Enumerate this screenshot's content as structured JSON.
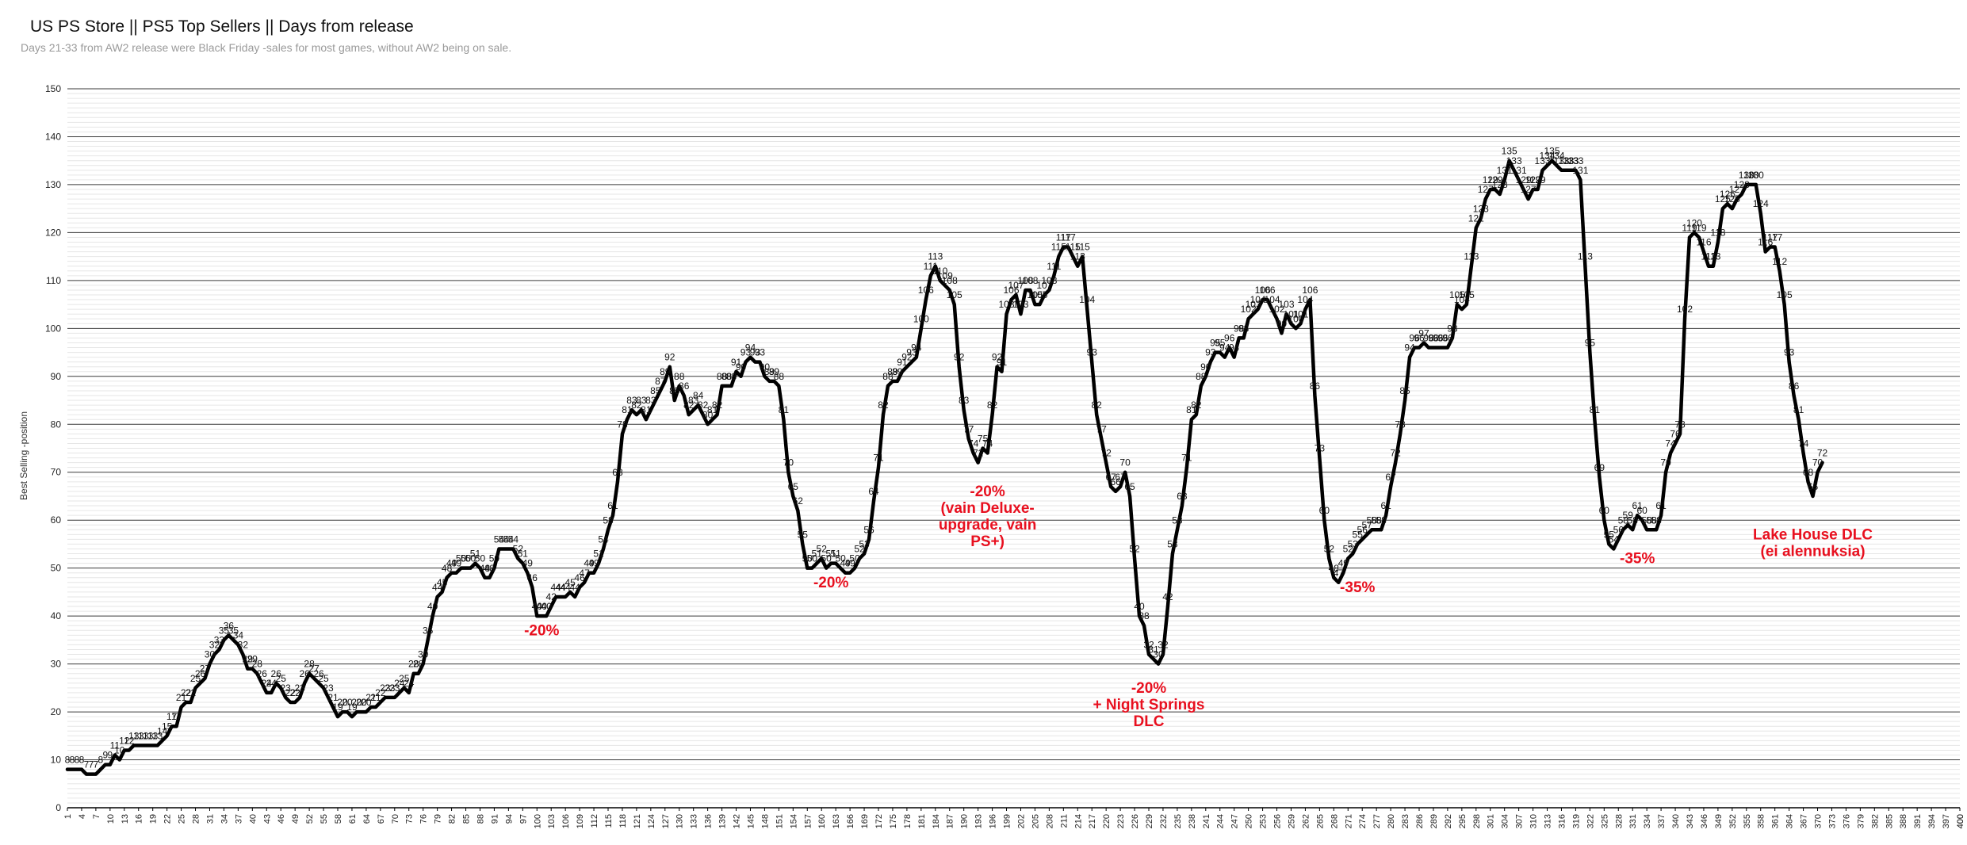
{
  "chart_data": {
    "type": "line",
    "title": "US PS Store || PS5 Top Sellers || Days from release",
    "subtitle": "Days 21-33 from AW2 release were Black Friday -sales for most games, without AW2 being on sale.",
    "ylabel": "Best Selling -position",
    "xlabel": "",
    "ylim": [
      0,
      150
    ],
    "xlim": [
      1,
      400
    ],
    "y_ticks": [
      0,
      10,
      20,
      30,
      40,
      50,
      60,
      70,
      80,
      90,
      100,
      110,
      120,
      130,
      140,
      150
    ],
    "x_tick_start": 1,
    "x_tick_step": 3,
    "grid": true,
    "line_color": "#000000",
    "annotation_color": "#e8101f",
    "series": [
      {
        "values": [
          8,
          8,
          8,
          8,
          7,
          7,
          7,
          8,
          9,
          9,
          11,
          10,
          12,
          12,
          13,
          13,
          13,
          13,
          13,
          13,
          14,
          15,
          17,
          17,
          21,
          22,
          22,
          25,
          26,
          27,
          30,
          32,
          33,
          35,
          36,
          35,
          34,
          32,
          29,
          29,
          28,
          26,
          24,
          24,
          26,
          25,
          23,
          22,
          22,
          23,
          26,
          28,
          27,
          26,
          25,
          23,
          21,
          19,
          20,
          20,
          19,
          20,
          20,
          20,
          21,
          21,
          22,
          23,
          23,
          23,
          24,
          25,
          24,
          28,
          28,
          30,
          35,
          40,
          44,
          45,
          48,
          49,
          49,
          50,
          50,
          50,
          51,
          50,
          48,
          48,
          50,
          54,
          54,
          54,
          54,
          52,
          51,
          49,
          46,
          40,
          40,
          40,
          42,
          44,
          44,
          44,
          45,
          44,
          46,
          47,
          49,
          49,
          51,
          54,
          58,
          61,
          68,
          78,
          81,
          83,
          82,
          83,
          81,
          83,
          85,
          87,
          89,
          92,
          85,
          88,
          86,
          82,
          83,
          84,
          82,
          80,
          81,
          82,
          88,
          88,
          88,
          91,
          90,
          93,
          94,
          93,
          93,
          90,
          89,
          89,
          88,
          81,
          70,
          65,
          62,
          55,
          50,
          50,
          51,
          52,
          50,
          51,
          51,
          50,
          49,
          49,
          50,
          52,
          53,
          56,
          64,
          71,
          82,
          88,
          89,
          89,
          91,
          92,
          93,
          94,
          100,
          106,
          111,
          113,
          110,
          109,
          108,
          105,
          92,
          83,
          77,
          74,
          72,
          75,
          74,
          82,
          92,
          91,
          103,
          106,
          107,
          103,
          108,
          108,
          105,
          105,
          107,
          108,
          111,
          115,
          117,
          117,
          115,
          113,
          115,
          104,
          93,
          82,
          77,
          72,
          67,
          66,
          67,
          70,
          65,
          52,
          40,
          38,
          32,
          31,
          30,
          32,
          42,
          53,
          58,
          63,
          71,
          81,
          82,
          88,
          90,
          93,
          95,
          95,
          94,
          96,
          94,
          98,
          98,
          102,
          103,
          104,
          106,
          106,
          104,
          102,
          99,
          103,
          101,
          100,
          101,
          104,
          106,
          86,
          73,
          60,
          52,
          48,
          47,
          49,
          52,
          53,
          55,
          56,
          57,
          58,
          58,
          58,
          61,
          67,
          72,
          78,
          85,
          94,
          96,
          96,
          97,
          96,
          96,
          96,
          96,
          96,
          98,
          105,
          104,
          105,
          113,
          121,
          123,
          127,
          129,
          129,
          128,
          131,
          135,
          133,
          131,
          129,
          127,
          129,
          129,
          133,
          134,
          135,
          134,
          133,
          133,
          133,
          133,
          131,
          113,
          95,
          81,
          69,
          60,
          55,
          54,
          56,
          58,
          59,
          58,
          61,
          60,
          58,
          58,
          58,
          61,
          70,
          74,
          76,
          78,
          102,
          119,
          120,
          119,
          116,
          113,
          113,
          118,
          125,
          126,
          125,
          127,
          128,
          130,
          130,
          130,
          124,
          116,
          117,
          117,
          112,
          105,
          93,
          86,
          81,
          74,
          68,
          65,
          70,
          72
        ]
      }
    ],
    "point_labels": [
      "8",
      "8",
      "8",
      "8",
      "7",
      "7",
      "7",
      "8",
      "9",
      "9",
      "11",
      "10",
      "12",
      "12",
      "13",
      "13",
      "13",
      "13",
      "13",
      "13",
      "14",
      "15",
      "17",
      "17",
      "21",
      "22",
      "22",
      "25",
      "26",
      "27",
      "30",
      "32",
      "33",
      "35",
      "36",
      "35",
      "34",
      "32",
      "29",
      "29",
      "28",
      "26",
      "24",
      "24",
      "26",
      "25",
      "23",
      "22",
      "22",
      "23",
      "26",
      "28",
      "27",
      "26",
      "25",
      "23",
      "21",
      "19",
      "20",
      "20",
      "19",
      "20",
      "20",
      "20",
      "21",
      "21",
      "22",
      "23",
      "23",
      "23",
      "24",
      "25",
      "24",
      "28",
      "28",
      "30",
      "35",
      "40",
      "44",
      "45",
      "48",
      "49",
      "49",
      "50",
      "50",
      "50",
      "51",
      "50",
      "48",
      "48",
      "50",
      "54",
      "54",
      "54",
      "54",
      "52",
      "51",
      "49",
      "46",
      "40",
      "40",
      "40",
      "42",
      "44",
      "44",
      "44",
      "45",
      "44",
      "46",
      "47",
      "49",
      "49",
      "51",
      "54",
      "58",
      "61",
      "68",
      "78",
      "81",
      "83",
      "82",
      "83",
      "81",
      "83",
      "85",
      "87",
      "89",
      "92",
      "85",
      "88",
      "86",
      "82",
      "83",
      "84",
      "82",
      "80",
      "81",
      "82",
      "88",
      "88",
      "88",
      "91",
      "90",
      "93",
      "94",
      "93",
      "93",
      "90",
      "89",
      "89",
      "88",
      "81",
      "70",
      "65",
      "62",
      "55",
      "50",
      "50",
      "51",
      "52",
      "50",
      "51",
      "51",
      "50",
      "49",
      "49",
      "50",
      "52",
      "53",
      "56",
      "64",
      "71",
      "82",
      "88",
      "89",
      "89",
      "91",
      "92",
      "93",
      "94",
      "100",
      "106",
      "111",
      "113",
      "110",
      "109",
      "108",
      "105",
      "92",
      "83",
      "77",
      "74",
      "72",
      "75",
      "74",
      "82",
      "92",
      "91",
      "103",
      "106",
      "107",
      "103",
      "108",
      "108",
      "105",
      "105",
      "107",
      "108",
      "111",
      "115",
      "117",
      "117",
      "115",
      "113",
      "115",
      "104",
      "93",
      "82",
      "77",
      "72",
      "67",
      "66",
      "67",
      "70",
      "65",
      "52",
      "40",
      "38",
      "32",
      "31",
      "30",
      "32",
      "42",
      "53",
      "58",
      "63",
      "71",
      "81",
      "82",
      "88",
      "90",
      "93",
      "95",
      "95",
      "94",
      "96",
      "94",
      "98",
      "98",
      "102",
      "103",
      "104",
      "106",
      "106",
      "104",
      "102",
      "99",
      "103",
      "101",
      "100",
      "101",
      "104",
      "106",
      "86",
      "73",
      "60",
      "52",
      "48",
      "47",
      "49",
      "52",
      "53",
      "55",
      "56",
      "57",
      "58",
      "58",
      "58",
      "61",
      "67",
      "72",
      "78",
      "85",
      "94",
      "96",
      "96",
      "97",
      "96",
      "96",
      "96",
      "96",
      "96",
      "98",
      "105",
      "104",
      "105",
      "113",
      "121",
      "123",
      "127",
      "129",
      "129",
      "128",
      "131",
      "135",
      "133",
      "131",
      "129",
      "127",
      "129",
      "129",
      "133",
      "134",
      "135",
      "134",
      "133",
      "133",
      "133",
      "133",
      "131",
      "113",
      "95",
      "81",
      "69",
      "60",
      "55",
      "54",
      "56",
      "58",
      "59",
      "58",
      "61",
      "60",
      "58",
      "58",
      "58",
      "61",
      "70",
      "74",
      "76",
      "78",
      "102",
      "119",
      "120",
      "119",
      "116",
      "113",
      "113",
      "118",
      "125",
      "126",
      "125",
      "127",
      "128",
      "130",
      "130",
      "130",
      "124",
      "116",
      "117",
      "117",
      "112",
      "105",
      "93",
      "86",
      "81",
      "74",
      "68",
      "65",
      "70",
      "72"
    ],
    "annotations": [
      {
        "lines": [
          "-20%"
        ],
        "x": 101,
        "y": 36
      },
      {
        "lines": [
          "-20%"
        ],
        "x": 162,
        "y": 46
      },
      {
        "lines": [
          "-20%",
          "(vain Deluxe-",
          "upgrade, vain",
          "PS+)"
        ],
        "x": 195,
        "y": 65
      },
      {
        "lines": [
          "-20%",
          "+ Night Springs",
          "DLC"
        ],
        "x": 229,
        "y": 24
      },
      {
        "lines": [
          "-35%"
        ],
        "x": 273,
        "y": 45
      },
      {
        "lines": [
          "-35%"
        ],
        "x": 332,
        "y": 51
      },
      {
        "lines": [
          "Lake House DLC",
          "(ei alennuksia)"
        ],
        "x": 369,
        "y": 56
      }
    ]
  }
}
